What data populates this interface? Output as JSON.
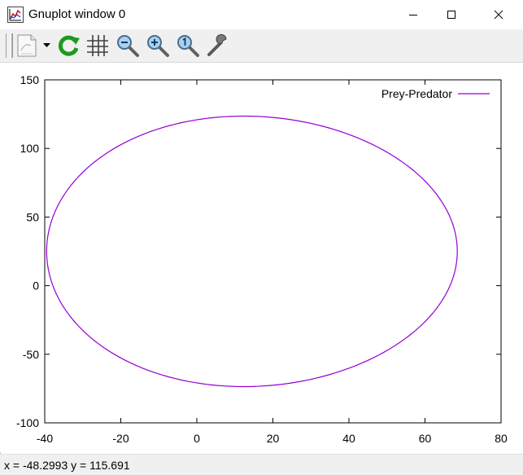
{
  "window": {
    "title": "Gnuplot window 0",
    "controls": {
      "minimize": "minimize",
      "maximize": "maximize",
      "close": "close"
    }
  },
  "toolbar": {
    "items": [
      "copy-to-clipboard-icon",
      "dropdown-arrow-icon",
      "replot-icon",
      "grid-icon",
      "zoom-out-icon",
      "zoom-in-icon",
      "zoom-reset-icon",
      "options-icon"
    ]
  },
  "status": {
    "text": "x = -48.2993 y = 115.691"
  },
  "colors": {
    "curve": "#9400d3",
    "toolbar_bg": "#f0f0f0",
    "replot_green": "#1e9a1e"
  },
  "chart_data": {
    "type": "line",
    "title": "",
    "xlabel": "",
    "ylabel": "",
    "xlim": [
      -40,
      80
    ],
    "ylim": [
      -100,
      150
    ],
    "xticks": [
      -40,
      -20,
      0,
      20,
      40,
      60,
      80
    ],
    "yticks": [
      -100,
      -50,
      0,
      50,
      100,
      150
    ],
    "grid": false,
    "legend": "top-right",
    "series": [
      {
        "name": "Prey-Predator",
        "color": "#9400d3",
        "shape": "closed ellipse",
        "center": [
          14.5,
          25
        ],
        "x_extent": [
          -39.5,
          68.5
        ],
        "y_extent": [
          -73.5,
          123.5
        ]
      }
    ]
  }
}
